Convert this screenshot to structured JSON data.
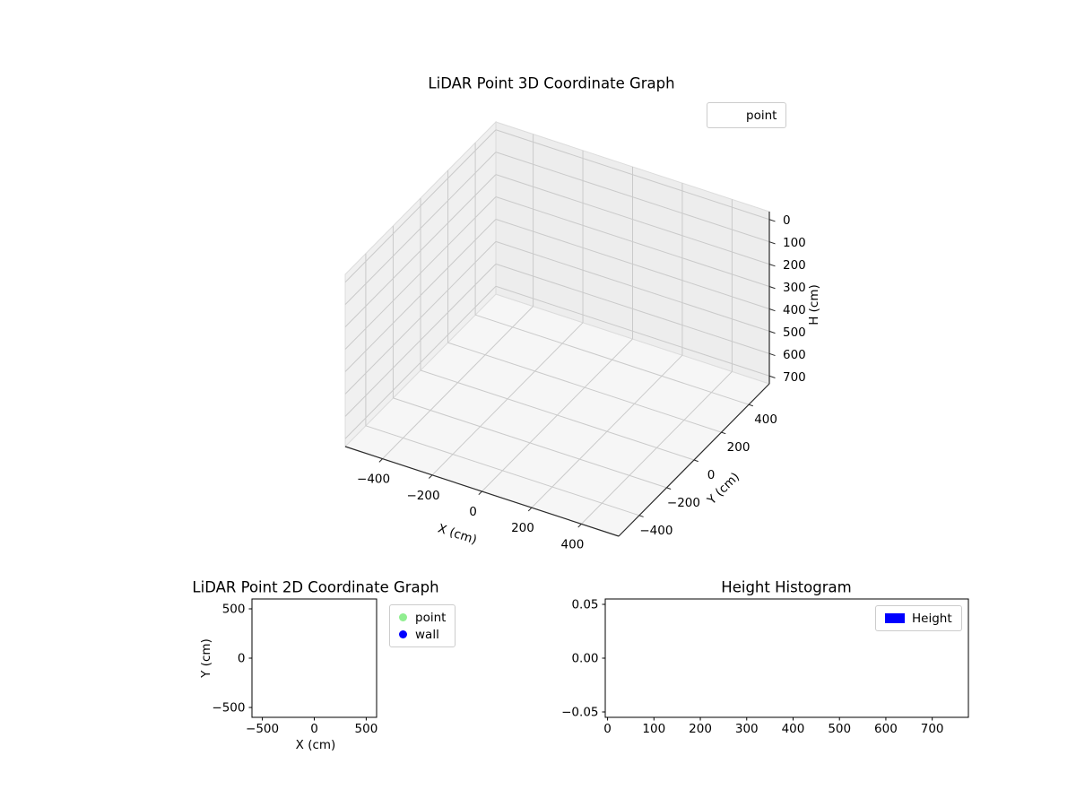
{
  "colors": {
    "point_green": "#90ee90",
    "wall_blue": "#0000ff",
    "height_blue": "#0000ff",
    "grid3d": "#cacaca",
    "pane_floor": "#f6f6f6",
    "pane_wall_left": "#f0f0f0",
    "pane_wall_right": "#ededed",
    "spine": "#2a2a2a",
    "legend_border": "#cccccc"
  },
  "chart_data": [
    {
      "type": "scatter",
      "subtype": "3d",
      "title": "LiDAR Point 3D Coordinate Graph",
      "xlabel": "X (cm)",
      "ylabel": "Y (cm)",
      "zlabel": "H (cm)",
      "x_tick_values": [
        -400,
        -200,
        0,
        200,
        400
      ],
      "x_tick_labels": [
        "−400",
        "−200",
        "0",
        "200",
        "400"
      ],
      "y_tick_values": [
        -400,
        -200,
        0,
        200,
        400
      ],
      "y_tick_labels": [
        "−400",
        "−200",
        "0",
        "200",
        "400"
      ],
      "z_tick_values": [
        0,
        100,
        200,
        300,
        400,
        500,
        600,
        700
      ],
      "z_tick_labels": [
        "0",
        "100",
        "200",
        "300",
        "400",
        "500",
        "600",
        "700"
      ],
      "xlim": [
        -550,
        550
      ],
      "ylim": [
        -550,
        550
      ],
      "zlim": [
        -35,
        735
      ],
      "zaxis_inverted": true,
      "grid": true,
      "legend": {
        "position": "upper right (outside axes)",
        "entries": [
          {
            "label": "point",
            "marker": "none"
          }
        ]
      },
      "series": [
        {
          "name": "point",
          "points": []
        }
      ]
    },
    {
      "type": "scatter",
      "subtype": "2d",
      "title": "LiDAR Point 2D Coordinate Graph",
      "xlabel": "X (cm)",
      "ylabel": "Y (cm)",
      "x_tick_values": [
        -500,
        0,
        500
      ],
      "x_tick_labels": [
        "−500",
        "0",
        "500"
      ],
      "y_tick_values": [
        -500,
        0,
        500
      ],
      "y_tick_labels": [
        "−500",
        "0",
        "500"
      ],
      "xlim": [
        -600,
        600
      ],
      "ylim": [
        -600,
        600
      ],
      "grid": false,
      "legend": {
        "position": "outside upper right",
        "entries": [
          {
            "label": "point",
            "color": "#90ee90",
            "marker": "circle"
          },
          {
            "label": "wall",
            "color": "#0000ff",
            "marker": "circle"
          }
        ]
      },
      "series": [
        {
          "name": "point",
          "color": "#90ee90",
          "points": []
        },
        {
          "name": "wall",
          "color": "#0000ff",
          "points": []
        }
      ]
    },
    {
      "type": "bar",
      "subtype": "histogram",
      "title": "Height Histogram",
      "xlabel": "",
      "ylabel": "",
      "x_tick_values": [
        0,
        100,
        200,
        300,
        400,
        500,
        600,
        700
      ],
      "x_tick_labels": [
        "0",
        "100",
        "200",
        "300",
        "400",
        "500",
        "600",
        "700"
      ],
      "y_tick_values": [
        -0.05,
        0,
        0.05
      ],
      "y_tick_labels": [
        "−0.05",
        "0.00",
        "0.05"
      ],
      "xlim": [
        -5,
        778
      ],
      "ylim": [
        -0.055,
        0.055
      ],
      "grid": false,
      "legend": {
        "position": "upper right",
        "entries": [
          {
            "label": "Height",
            "color": "#0000ff",
            "marker": "rect"
          }
        ]
      },
      "values": []
    }
  ]
}
